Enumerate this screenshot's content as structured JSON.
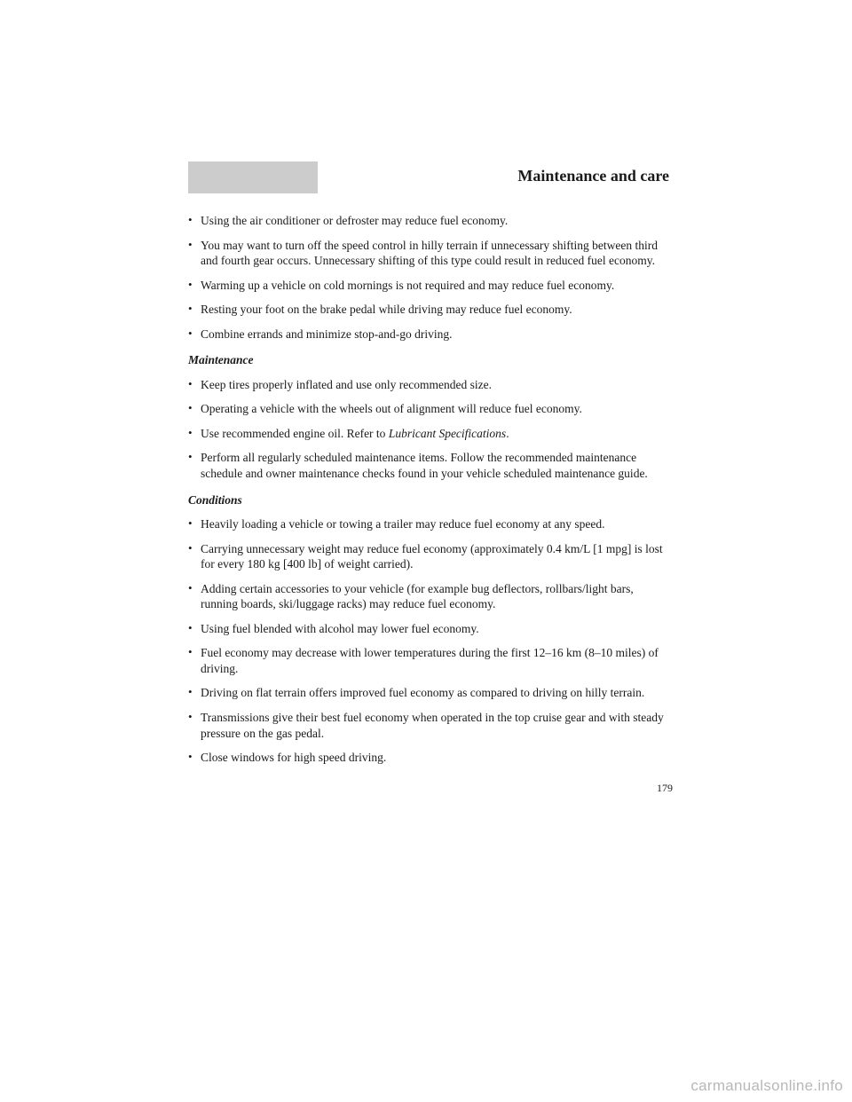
{
  "header": {
    "title": "Maintenance and care"
  },
  "sections": {
    "intro_bullets": [
      "Using the air conditioner or defroster may reduce fuel economy.",
      "You may want to turn off the speed control in hilly terrain if unnecessary shifting between third and fourth gear occurs. Unnecessary shifting of this type could result in reduced fuel economy.",
      "Warming up a vehicle on cold mornings is not required and may reduce fuel economy.",
      "Resting your foot on the brake pedal while driving may reduce fuel economy.",
      "Combine errands and minimize stop-and-go driving."
    ],
    "maintenance": {
      "heading": "Maintenance",
      "bullets": [
        "Keep tires properly inflated and use only recommended size.",
        "Operating a vehicle with the wheels out of alignment will reduce fuel economy.",
        "Use recommended engine oil. Refer to ",
        "Perform all regularly scheduled maintenance items. Follow the recommended maintenance schedule and owner maintenance checks found in your vehicle scheduled maintenance guide."
      ],
      "bullet3_italic": "Lubricant Specifications",
      "bullet3_suffix": "."
    },
    "conditions": {
      "heading": "Conditions",
      "bullets": [
        "Heavily loading a vehicle or towing a trailer may reduce fuel economy at any speed.",
        "Carrying unnecessary weight may reduce fuel economy (approximately 0.4 km/L [1 mpg] is lost for every 180 kg [400 lb] of weight carried).",
        "Adding certain accessories to your vehicle (for example bug deflectors, rollbars/light bars, running boards, ski/luggage racks) may reduce fuel economy.",
        "Using fuel blended with alcohol may lower fuel economy.",
        "Fuel economy may decrease with lower temperatures during the first 12–16 km (8–10 miles) of driving.",
        "Driving on flat terrain offers improved fuel economy as compared to driving on hilly terrain.",
        "Transmissions give their best fuel economy when operated in the top cruise gear and with steady pressure on the gas pedal.",
        "Close windows for high speed driving."
      ]
    }
  },
  "page_number": "179",
  "watermark": "carmanualsonline.info"
}
